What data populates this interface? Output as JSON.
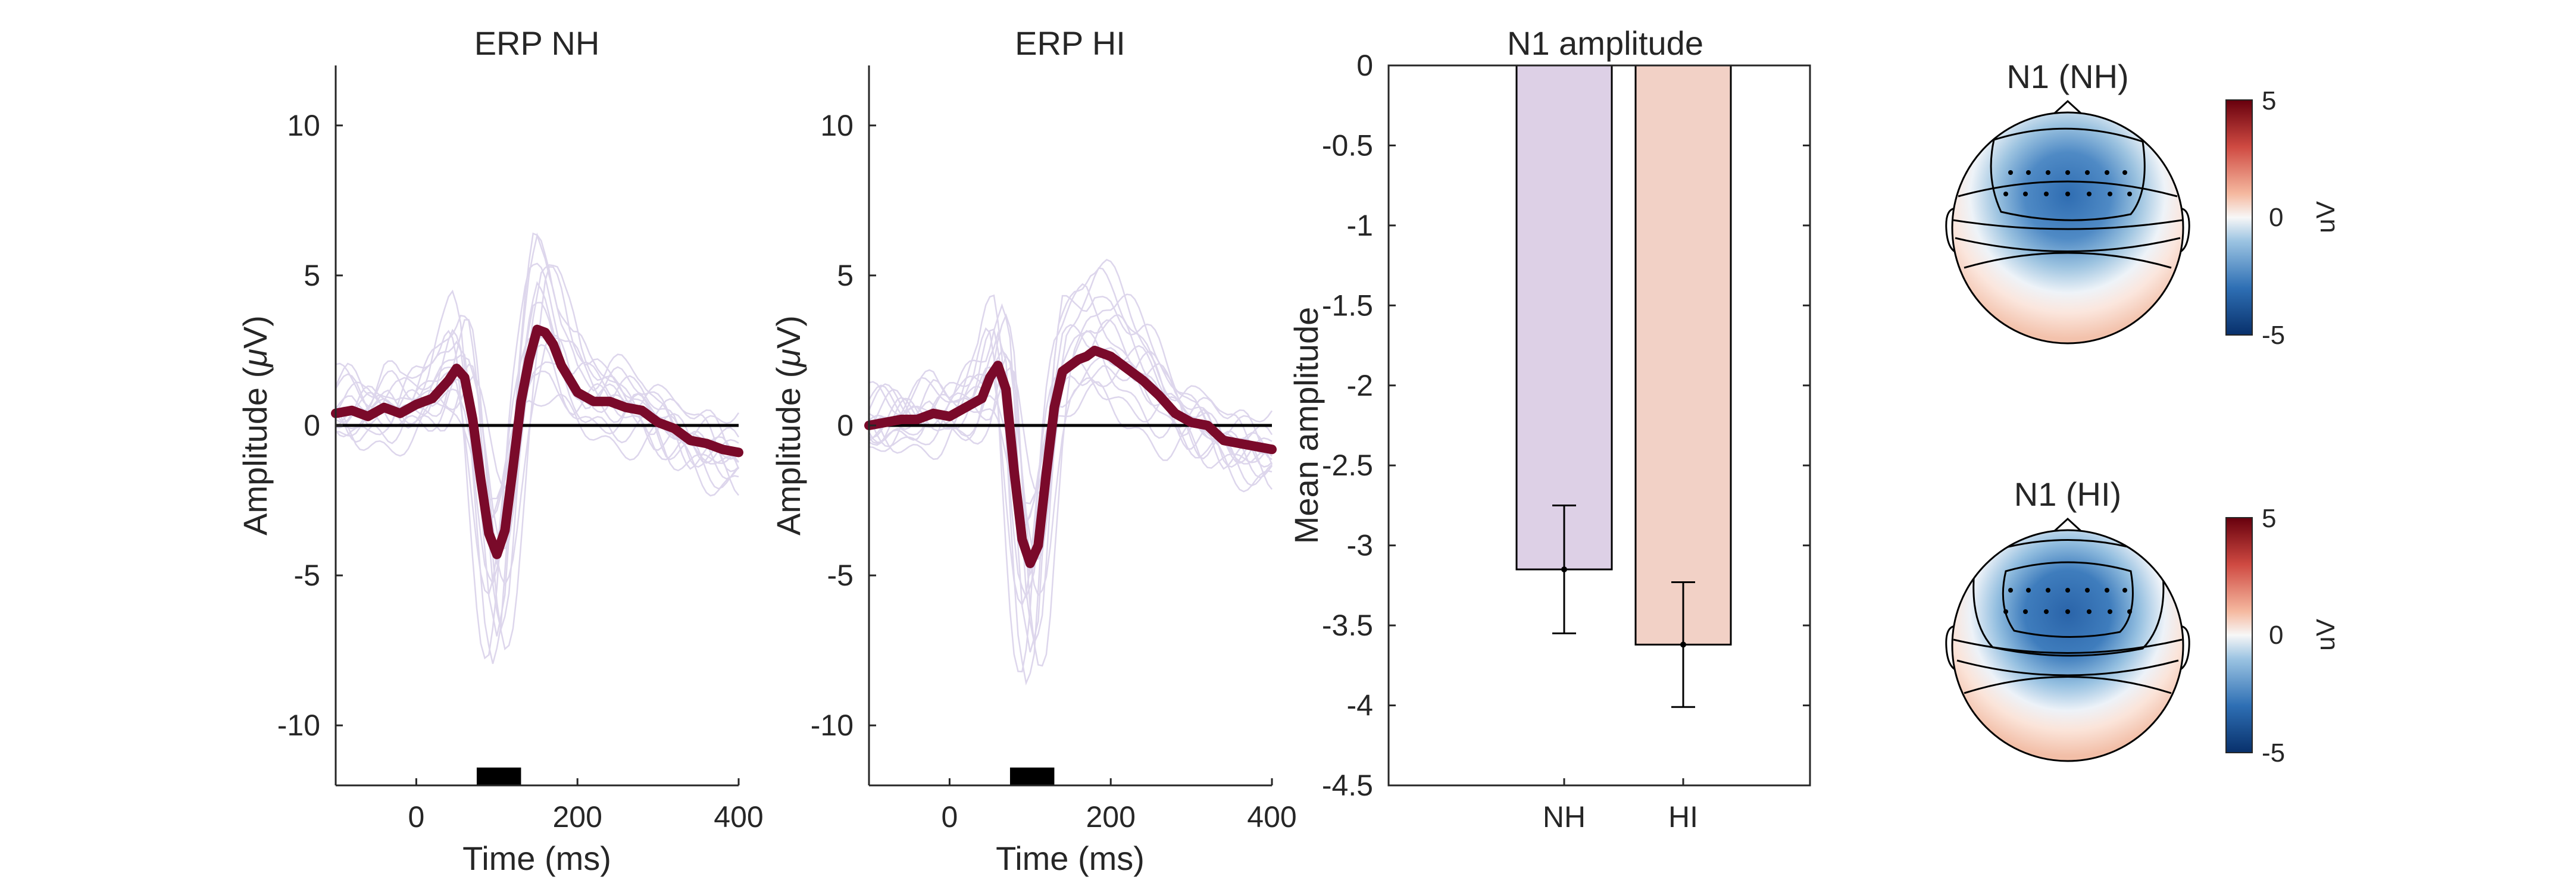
{
  "chart_data": [
    {
      "type": "line",
      "title": "ERP NH",
      "xlabel": "Time (ms)",
      "ylabel_prefix": "Amplitude (",
      "ylabel_mu": "μ",
      "ylabel_suffix": "V)",
      "xlim": [
        -100,
        400
      ],
      "ylim": [
        -12,
        12
      ],
      "xticks": [
        0,
        200,
        400
      ],
      "yticks": [
        -10,
        -5,
        0,
        5,
        10
      ],
      "zero_line": true,
      "time_window": [
        75,
        130
      ],
      "series": [
        {
          "role": "mean",
          "color": "#7a0a2a",
          "x": [
            -100,
            -80,
            -60,
            -40,
            -20,
            0,
            20,
            40,
            50,
            60,
            70,
            80,
            90,
            100,
            110,
            120,
            130,
            140,
            150,
            160,
            170,
            180,
            200,
            220,
            240,
            260,
            280,
            300,
            320,
            340,
            360,
            380,
            400
          ],
          "y": [
            0.4,
            0.5,
            0.3,
            0.6,
            0.4,
            0.7,
            0.9,
            1.5,
            1.9,
            1.6,
            0.2,
            -1.8,
            -3.6,
            -4.3,
            -3.5,
            -1.4,
            0.8,
            2.2,
            3.2,
            3.1,
            2.7,
            2.0,
            1.1,
            0.8,
            0.8,
            0.6,
            0.5,
            0.1,
            -0.1,
            -0.5,
            -0.6,
            -0.8,
            -0.9
          ]
        }
      ],
      "subject_traces": {
        "color": "#ddd6ec",
        "count": 14,
        "extremes": {
          "min": -10,
          "max": 6.8
        }
      }
    },
    {
      "type": "line",
      "title": "ERP HI",
      "xlabel": "Time (ms)",
      "ylabel_prefix": "Amplitude (",
      "ylabel_mu": "μ",
      "ylabel_suffix": "V)",
      "xlim": [
        -100,
        400
      ],
      "ylim": [
        -12,
        12
      ],
      "xticks": [
        0,
        200,
        400
      ],
      "yticks": [
        -10,
        -5,
        0,
        5,
        10
      ],
      "zero_line": true,
      "time_window": [
        75,
        130
      ],
      "series": [
        {
          "role": "mean",
          "color": "#7a0a2a",
          "x": [
            -100,
            -80,
            -60,
            -40,
            -20,
            0,
            20,
            40,
            50,
            60,
            70,
            80,
            90,
            100,
            110,
            120,
            130,
            140,
            150,
            160,
            170,
            180,
            200,
            220,
            240,
            260,
            280,
            300,
            320,
            340,
            360,
            380,
            400
          ],
          "y": [
            0.0,
            0.1,
            0.2,
            0.2,
            0.4,
            0.3,
            0.6,
            0.9,
            1.6,
            2.0,
            1.2,
            -1.5,
            -3.8,
            -4.6,
            -4.0,
            -1.6,
            0.6,
            1.8,
            2.0,
            2.2,
            2.3,
            2.5,
            2.3,
            1.9,
            1.5,
            1.0,
            0.4,
            0.1,
            0.0,
            -0.5,
            -0.6,
            -0.7,
            -0.8
          ]
        }
      ],
      "subject_traces": {
        "color": "#ddd6ec",
        "count": 14,
        "extremes": {
          "min": -10.3,
          "max": 5.5
        }
      }
    },
    {
      "type": "bar",
      "title": "N1 amplitude",
      "xlabel": "",
      "ylabel": "Mean amplitude",
      "categories": [
        "NH",
        "HI"
      ],
      "values": [
        -3.15,
        -3.62
      ],
      "errors": [
        0.4,
        0.39
      ],
      "colors": [
        "#ddd0e6",
        "#f2d1c6"
      ],
      "ylim": [
        -4.5,
        0
      ],
      "yticks": [
        0,
        -0.5,
        -1,
        -1.5,
        -2,
        -2.5,
        -3,
        -3.5,
        -4,
        -4.5
      ],
      "yticklabels": [
        "0",
        "-0.5",
        "-1",
        "-1.5",
        "-2",
        "-2.5",
        "-3",
        "-3.5",
        "-4",
        "-4.5"
      ]
    },
    {
      "type": "heatmap",
      "subtype": "topoplot",
      "title": "N1 (NH)",
      "colorbar_label": "uV",
      "clim": [
        -5,
        5
      ],
      "colorbar_ticks": [
        "5",
        "0",
        "-5"
      ]
    },
    {
      "type": "heatmap",
      "subtype": "topoplot",
      "title": "N1 (HI)",
      "colorbar_label": "uV",
      "clim": [
        -5,
        5
      ],
      "colorbar_ticks": [
        "5",
        "0",
        "-5"
      ]
    }
  ]
}
